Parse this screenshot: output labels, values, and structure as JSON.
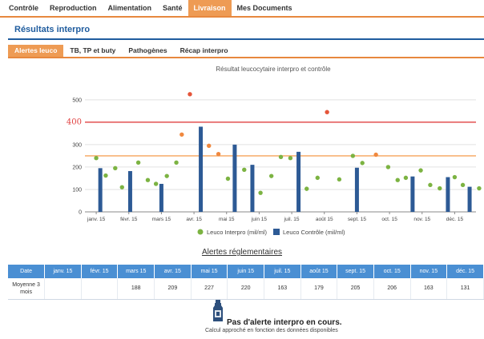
{
  "nav": {
    "tabs": [
      "Contrôle",
      "Reproduction",
      "Alimentation",
      "Santé",
      "Livraison",
      "Mes Documents"
    ],
    "active_tab": "Livraison"
  },
  "page_title": "Résultats interpro",
  "subnav": {
    "tabs": [
      "Alertes leuco",
      "TB, TP et buty",
      "Pathogènes",
      "Récap interpro"
    ],
    "active_tab": "Alertes leuco"
  },
  "colors": {
    "accent": "#ee9b54",
    "title_blue": "#1f5c9e",
    "bar_blue": "#2d5a95",
    "dot_green": "#7cb342",
    "dot_orange": "#f0883e",
    "dot_red": "#e5553a",
    "threshold_red": "#e04040",
    "threshold_orange": "#f5a35a",
    "table_header": "#4a8fd3"
  },
  "chart_data": {
    "type": "bar",
    "title": "Résultat leucocytaire interpro et contrôle",
    "x_labels": [
      "janv. 15",
      "févr. 15",
      "mars 15",
      "avr. 15",
      "mai 15",
      "juin 15",
      "juil. 15",
      "août 15",
      "sept. 15",
      "oct. 15",
      "nov. 15",
      "déc. 15"
    ],
    "y_ticks": [
      "0",
      "100",
      "200",
      "300",
      "400",
      "500"
    ],
    "ylim": [
      0,
      560
    ],
    "thresholds": [
      {
        "value": 400,
        "color": "#e04040",
        "label": "400"
      },
      {
        "value": 250,
        "color": "#f5a35a"
      }
    ],
    "series": [
      {
        "name": "Leuco Interpro (mil/ml)",
        "kind": "scatter",
        "points": [
          {
            "x": 0.15,
            "y": 240
          },
          {
            "x": 0.5,
            "y": 162
          },
          {
            "x": 0.85,
            "y": 195
          },
          {
            "x": 1.1,
            "y": 110
          },
          {
            "x": 1.7,
            "y": 220
          },
          {
            "x": 2.05,
            "y": 142
          },
          {
            "x": 2.35,
            "y": 125
          },
          {
            "x": 2.75,
            "y": 160
          },
          {
            "x": 3.1,
            "y": 220
          },
          {
            "x": 3.3,
            "y": 345
          },
          {
            "x": 3.6,
            "y": 525
          },
          {
            "x": 4.3,
            "y": 295
          },
          {
            "x": 4.65,
            "y": 258
          },
          {
            "x": 5.0,
            "y": 148
          },
          {
            "x": 5.6,
            "y": 188
          },
          {
            "x": 6.2,
            "y": 85
          },
          {
            "x": 6.6,
            "y": 160
          },
          {
            "x": 6.95,
            "y": 245
          },
          {
            "x": 7.3,
            "y": 240
          },
          {
            "x": 7.9,
            "y": 103
          },
          {
            "x": 8.3,
            "y": 152
          },
          {
            "x": 8.65,
            "y": 445
          },
          {
            "x": 9.1,
            "y": 145
          },
          {
            "x": 9.6,
            "y": 250
          },
          {
            "x": 9.95,
            "y": 218
          },
          {
            "x": 10.45,
            "y": 255
          },
          {
            "x": 10.9,
            "y": 200
          },
          {
            "x": 11.25,
            "y": 142
          },
          {
            "x": 11.55,
            "y": 152
          },
          {
            "x": 12.1,
            "y": 185
          },
          {
            "x": 12.45,
            "y": 120
          },
          {
            "x": 12.8,
            "y": 105
          },
          {
            "x": 13.35,
            "y": 155
          },
          {
            "x": 13.65,
            "y": 120
          },
          {
            "x": 14.25,
            "y": 105
          }
        ]
      },
      {
        "name": "Leuco Contrôle (mil/ml)",
        "kind": "bar",
        "points": [
          {
            "x": 0.3,
            "y": 195
          },
          {
            "x": 1.4,
            "y": 182
          },
          {
            "x": 2.55,
            "y": 125
          },
          {
            "x": 4.0,
            "y": 380
          },
          {
            "x": 5.25,
            "y": 300
          },
          {
            "x": 5.9,
            "y": 210
          },
          {
            "x": 7.6,
            "y": 268
          },
          {
            "x": 9.75,
            "y": 197
          },
          {
            "x": 11.8,
            "y": 158
          },
          {
            "x": 13.1,
            "y": 155
          },
          {
            "x": 13.9,
            "y": 112
          }
        ]
      }
    ],
    "legend_position": "bottom"
  },
  "alerts": {
    "title": "Alertes réglementaires",
    "headers": [
      "Date",
      "janv. 15",
      "févr. 15",
      "mars 15",
      "avr. 15",
      "mai 15",
      "juin 15",
      "juil. 15",
      "août 15",
      "sept. 15",
      "oct. 15",
      "nov. 15",
      "déc. 15"
    ],
    "row": {
      "label": "Moyenne 3 mois",
      "values": [
        "",
        "",
        "188",
        "209",
        "227",
        "220",
        "163",
        "179",
        "205",
        "206",
        "163",
        "131"
      ]
    }
  },
  "status": {
    "message": "Pas d'alerte interpro en cours.",
    "note": "Calcul approché en fonction des données disponibles",
    "icon": "milk-bottle-icon"
  }
}
